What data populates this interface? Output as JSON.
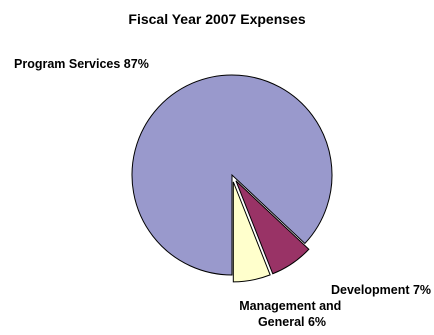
{
  "chart_data": {
    "type": "pie",
    "title": "Fiscal Year 2007 Expenses",
    "slices": [
      {
        "label": "Program Services 87%",
        "value": 87,
        "color": "#9999cc"
      },
      {
        "label": "Development 7%",
        "value": 7,
        "color": "#993366"
      },
      {
        "label": "Management and General 6%",
        "label_lines": [
          "Management and",
          "General 6%"
        ],
        "value": 6,
        "color": "#ffffcc"
      }
    ]
  }
}
